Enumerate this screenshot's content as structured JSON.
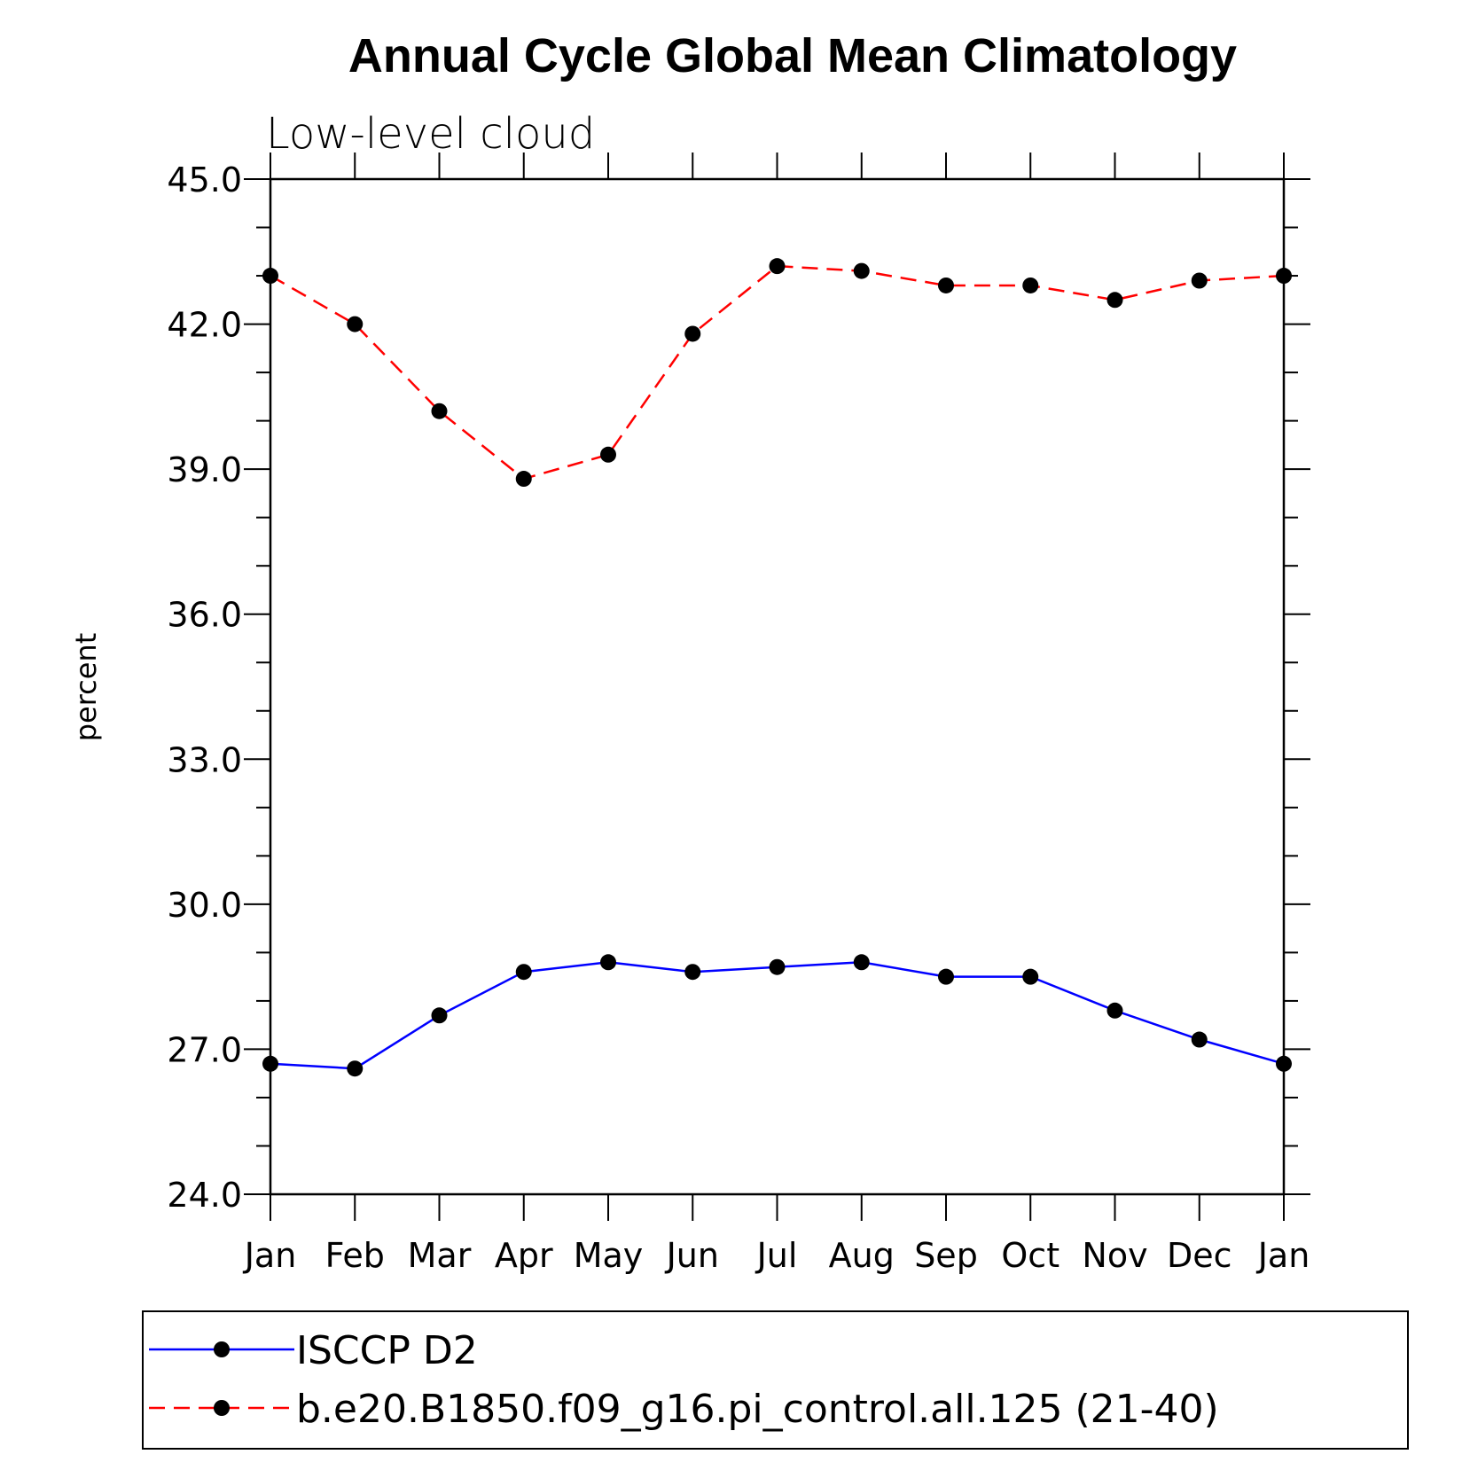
{
  "chart_data": {
    "type": "line",
    "title": "Annual Cycle Global Mean Climatology",
    "subtitle": "Low-level cloud",
    "ylabel": "percent",
    "xlabel": "",
    "ylim": [
      24.0,
      45.0
    ],
    "yticks": [
      "24.0",
      "27.0",
      "30.0",
      "33.0",
      "36.0",
      "39.0",
      "42.0",
      "45.0"
    ],
    "categories": [
      "Jan",
      "Feb",
      "Mar",
      "Apr",
      "May",
      "Jun",
      "Jul",
      "Aug",
      "Sep",
      "Oct",
      "Nov",
      "Dec",
      "Jan"
    ],
    "grid": false,
    "legend_position": "bottom",
    "series": [
      {
        "name": "ISCCP D2",
        "color": "#0000ff",
        "line_style": "solid",
        "marker": "circle",
        "values": [
          26.7,
          26.6,
          27.7,
          28.6,
          28.8,
          28.6,
          28.7,
          28.8,
          28.5,
          28.5,
          27.8,
          27.2,
          26.7
        ]
      },
      {
        "name": "b.e20.B1850.f09_g16.pi_control.all.125 (21-40)",
        "color": "#ff0000",
        "line_style": "dashed",
        "marker": "circle",
        "values": [
          43.0,
          42.0,
          40.2,
          38.8,
          39.3,
          41.8,
          43.2,
          43.1,
          42.8,
          42.8,
          42.5,
          42.9,
          43.0
        ]
      }
    ]
  }
}
